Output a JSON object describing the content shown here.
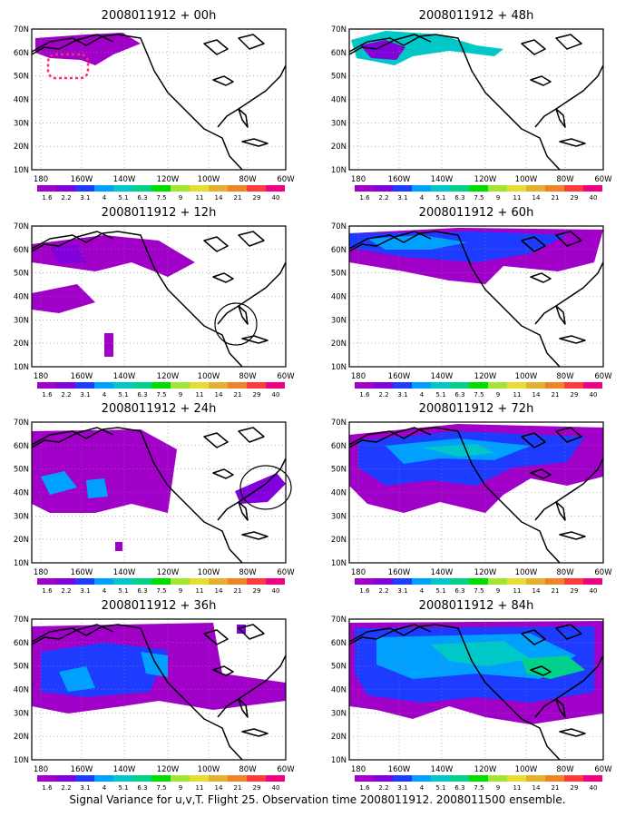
{
  "caption": "Signal Variance for u,v,T. Flight 25. Observation time 2008011912. 2008011500 ensemble.",
  "x_ticks": [
    "180",
    "160W",
    "140W",
    "120W",
    "100W",
    "80W",
    "60W"
  ],
  "y_ticks": [
    "70N",
    "60N",
    "50N",
    "40N",
    "30N",
    "20N",
    "10N"
  ],
  "colorbar": {
    "colors": [
      "#a000c8",
      "#8200dc",
      "#1e3cff",
      "#00a0ff",
      "#00c8c8",
      "#00d28c",
      "#00dc00",
      "#a0e632",
      "#e6dc32",
      "#e6af2d",
      "#f08228",
      "#fa3c3c",
      "#f00082"
    ],
    "labels": [
      "1.6",
      "2.2",
      "3.1",
      "4",
      "5.1",
      "6.3",
      "7.5",
      "9",
      "11",
      "14",
      "21",
      "29",
      "40"
    ]
  },
  "panels": [
    {
      "title": "2008011912 + 00h",
      "level": 0,
      "annotation": "red-dotted-box"
    },
    {
      "title": "2008011912 + 48h",
      "level": 4
    },
    {
      "title": "2008011912 + 12h",
      "level": 1,
      "annotation": "circle-florida"
    },
    {
      "title": "2008011912 + 60h",
      "level": 5
    },
    {
      "title": "2008011912 + 24h",
      "level": 2,
      "annotation": "circle-northeast"
    },
    {
      "title": "2008011912 + 72h",
      "level": 6
    },
    {
      "title": "2008011912 + 36h",
      "level": 3
    },
    {
      "title": "2008011912 + 84h",
      "level": 7
    }
  ]
}
